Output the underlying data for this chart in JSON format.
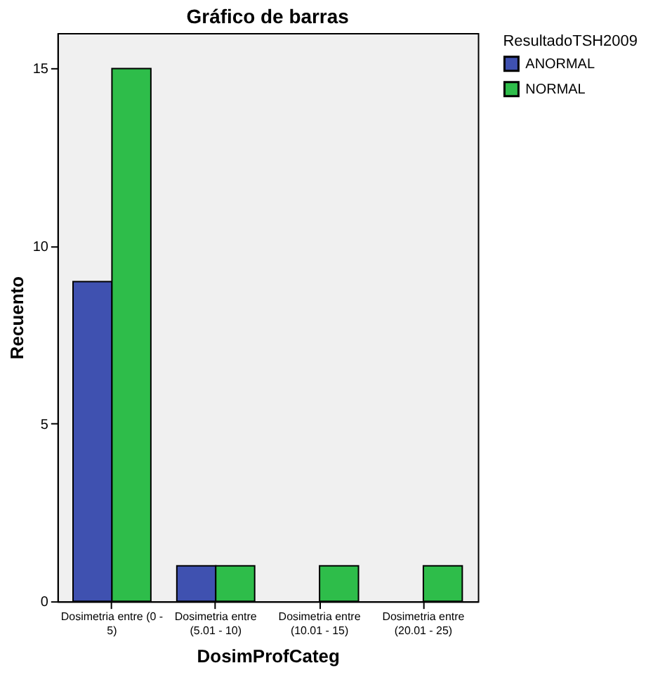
{
  "chart_data": {
    "type": "bar",
    "title": "Gráfico de barras",
    "xlabel": "DosimProfCateg",
    "ylabel": "Recuento",
    "legend_title": "ResultadoTSH2009",
    "categories": [
      "Dosimetria entre (0 - 5)",
      "Dosimetria entre (5.01 - 10)",
      "Dosimetria entre (10.01 - 15)",
      "Dosimetria entre (20.01 - 25)"
    ],
    "series": [
      {
        "name": "ANORMAL",
        "color": "#3f51b0",
        "values": [
          9,
          1,
          null,
          null
        ]
      },
      {
        "name": "NORMAL",
        "color": "#2ebd4a",
        "values": [
          15,
          1,
          1,
          1
        ]
      }
    ],
    "ylim": [
      0,
      16
    ],
    "yticks": [
      0,
      5,
      10,
      15
    ],
    "grid": false,
    "legend": "top right"
  }
}
